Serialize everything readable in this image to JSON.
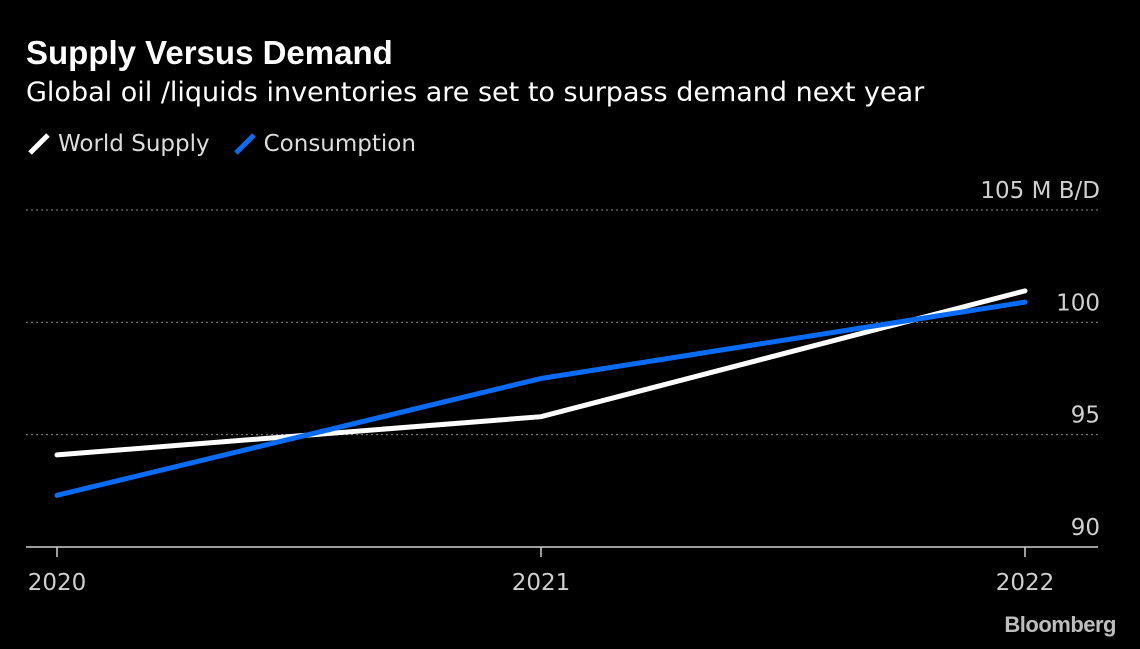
{
  "header": {
    "title": "Supply Versus Demand",
    "subtitle": "Global oil /liquids inventories are set to surpass demand next year"
  },
  "legend": [
    {
      "label": "World Supply",
      "color": "#ffffff"
    },
    {
      "label": "Consumption",
      "color": "#0a6cf5"
    }
  ],
  "chart_data": {
    "type": "line",
    "x": [
      "2020",
      "2021",
      "2022"
    ],
    "series": [
      {
        "name": "World Supply",
        "color": "#ffffff",
        "values": [
          94.1,
          95.8,
          101.4
        ]
      },
      {
        "name": "Consumption",
        "color": "#0a6cf5",
        "values": [
          92.3,
          97.5,
          100.9
        ]
      }
    ],
    "ylim": [
      90,
      105
    ],
    "yticks": [
      90,
      95,
      100,
      105
    ],
    "ytick_labels": [
      "90",
      "95",
      "100",
      "105 M B/D"
    ],
    "xtick_labels": [
      "2020",
      "2021",
      "2022"
    ],
    "grid": true,
    "legend_position": "top-left"
  },
  "brand": "Bloomberg"
}
